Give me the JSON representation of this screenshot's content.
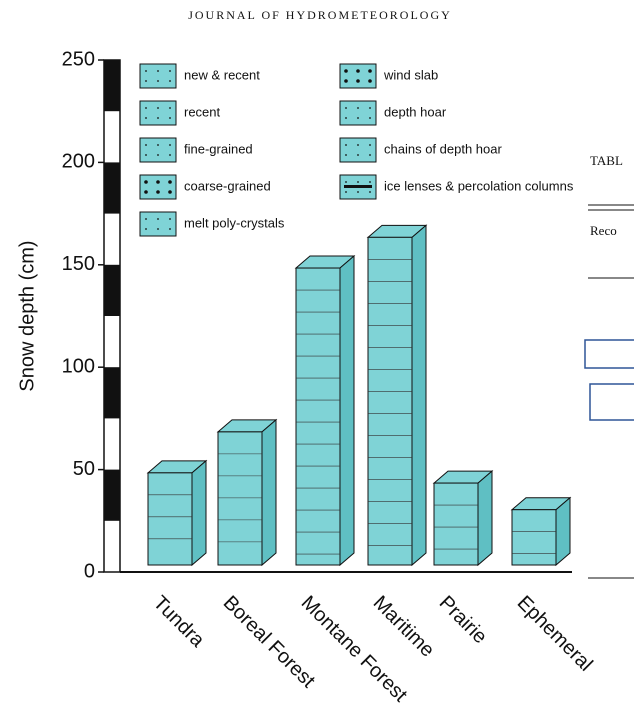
{
  "header": "JOURNAL OF HYDROMETEOROLOGY",
  "fragments": [
    "TABL",
    "Reco"
  ],
  "chart_data": {
    "type": "bar",
    "y_label": "Snow depth (cm)",
    "categories": [
      "Tundra",
      "Boreal Forest",
      "Montane Forest",
      "Maritime",
      "Prairie",
      "Ephemeral"
    ],
    "values": [
      45,
      65,
      145,
      160,
      40,
      27
    ],
    "color": "#7fd3d6",
    "ylim": [
      0,
      250
    ],
    "yticks": [
      0,
      50,
      100,
      150,
      200,
      250
    ],
    "legend": [
      "new & recent",
      "recent",
      "fine-grained",
      "coarse-grained",
      "melt poly-crystals",
      "wind slab",
      "depth hoar",
      "chains of depth hoar",
      "ice lenses & percolation columns"
    ]
  }
}
